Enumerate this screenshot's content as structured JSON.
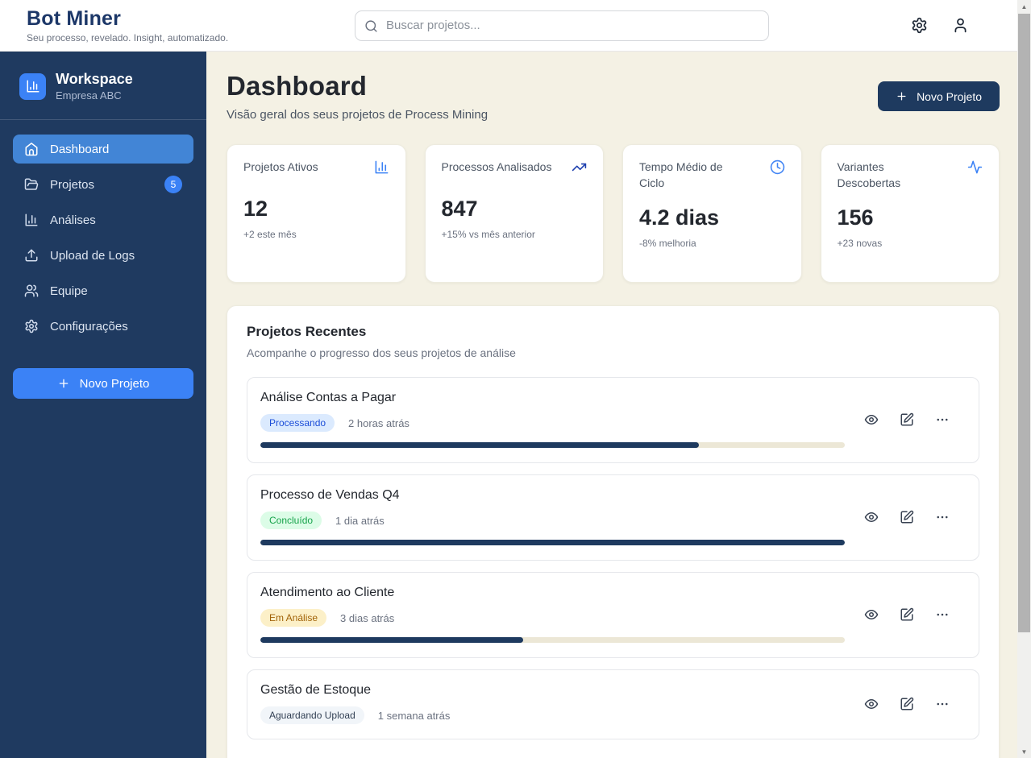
{
  "topbar": {
    "brand": "Bot Miner",
    "tagline": "Seu processo, revelado. Insight, automatizado.",
    "search_placeholder": "Buscar projetos..."
  },
  "sidebar": {
    "workspace_title": "Workspace",
    "workspace_subtitle": "Empresa ABC",
    "items": [
      {
        "label": "Dashboard",
        "icon": "home-icon",
        "active": true
      },
      {
        "label": "Projetos",
        "icon": "folder-icon",
        "badge": "5"
      },
      {
        "label": "Análises",
        "icon": "bar-chart-icon"
      },
      {
        "label": "Upload de Logs",
        "icon": "upload-icon"
      },
      {
        "label": "Equipe",
        "icon": "users-icon"
      },
      {
        "label": "Configurações",
        "icon": "gear-icon"
      }
    ],
    "new_project_label": "Novo Projeto"
  },
  "main": {
    "title": "Dashboard",
    "subtitle": "Visão geral dos seus projetos de Process Mining",
    "new_project_label": "Novo Projeto",
    "stats": [
      {
        "label": "Projetos Ativos",
        "icon": "bar-chart-icon",
        "icon_color": "#3b82f6",
        "value": "12",
        "sub": "+2 este mês"
      },
      {
        "label": "Processos Analisados",
        "icon": "trending-up-icon",
        "icon_color": "#1e40af",
        "value": "847",
        "sub": "+15% vs mês anterior"
      },
      {
        "label": "Tempo Médio de Ciclo",
        "icon": "clock-icon",
        "icon_color": "#4285f4",
        "value": "4.2 dias",
        "sub": "-8% melhoria"
      },
      {
        "label": "Variantes Descobertas",
        "icon": "activity-icon",
        "icon_color": "#3b82f6",
        "value": "156",
        "sub": "+23 novas"
      }
    ],
    "recent": {
      "title": "Projetos Recentes",
      "subtitle": "Acompanhe o progresso dos seus projetos de análise",
      "projects": [
        {
          "name": "Análise Contas a Pagar",
          "status": "Processando",
          "status_bg": "#dbeafe",
          "status_fg": "#1d4ed8",
          "time": "2 horas atrás",
          "progress": 75
        },
        {
          "name": "Processo de Vendas Q4",
          "status": "Concluído",
          "status_bg": "#dcfce7",
          "status_fg": "#16a34a",
          "time": "1 dia atrás",
          "progress": 100
        },
        {
          "name": "Atendimento ao Cliente",
          "status": "Em Análise",
          "status_bg": "#fcf0c8",
          "status_fg": "#a16207",
          "time": "3 dias atrás",
          "progress": 45
        },
        {
          "name": "Gestão de Estoque",
          "status": "Aguardando Upload",
          "status_bg": "#f1f5f9",
          "status_fg": "#334155",
          "time": "1 semana atrás",
          "progress": null
        }
      ]
    }
  },
  "colors": {
    "sidebar_bg": "#1f3a60",
    "sidebar_active": "#4285d6",
    "accent_blue": "#3b82f6",
    "dark_navy_button": "#1e3a5f",
    "main_bg": "#f4f1e4",
    "progress_track": "#ece7d6",
    "progress_fill": "#1e3a5f"
  }
}
